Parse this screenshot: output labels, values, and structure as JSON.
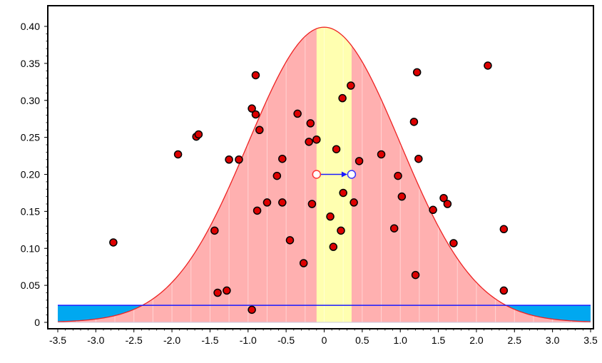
{
  "chart_data": {
    "type": "scatter",
    "title": "",
    "xlabel": "",
    "ylabel": "",
    "xlim": [
      -3.5,
      3.5
    ],
    "ylim": [
      0,
      0.4
    ],
    "grid": false,
    "x_ticks": [
      "-3.5",
      "-3.0",
      "-2.5",
      "-2.0",
      "-1.5",
      "-1.0",
      "-0.5",
      "0",
      "0.5",
      "1.0",
      "1.5",
      "2.0",
      "2.5",
      "3.0",
      "3.5"
    ],
    "y_ticks": [
      "0",
      "0.05",
      "0.10",
      "0.15",
      "0.20",
      "0.25",
      "0.30",
      "0.35",
      "0.40"
    ],
    "distribution": {
      "type": "standard-normal-pdf",
      "mean": 0,
      "sd": 1,
      "fill_color": "#ffb0b0",
      "line_color": "#ee2222"
    },
    "highlight_band": {
      "x_from": -0.1,
      "x_to": 0.36,
      "color": "#ffffb0"
    },
    "threshold_line": {
      "y": 0.023,
      "line_color": "#1a1aff",
      "fill_color": "#00a8f0"
    },
    "drag_indicator": {
      "from": {
        "x": -0.1,
        "y": 0.2
      },
      "to": {
        "x": 0.36,
        "y": 0.2
      },
      "color": "#1a1aff"
    },
    "points_color": "#dd0000",
    "points": [
      {
        "x": -2.77,
        "y": 0.108
      },
      {
        "x": -1.92,
        "y": 0.227
      },
      {
        "x": -1.68,
        "y": 0.251
      },
      {
        "x": -1.65,
        "y": 0.254
      },
      {
        "x": -1.44,
        "y": 0.124
      },
      {
        "x": -1.4,
        "y": 0.04
      },
      {
        "x": -1.28,
        "y": 0.043
      },
      {
        "x": -1.25,
        "y": 0.22
      },
      {
        "x": -1.12,
        "y": 0.22
      },
      {
        "x": -0.95,
        "y": 0.289
      },
      {
        "x": -0.95,
        "y": 0.017
      },
      {
        "x": -0.9,
        "y": 0.334
      },
      {
        "x": -0.9,
        "y": 0.281
      },
      {
        "x": -0.88,
        "y": 0.151
      },
      {
        "x": -0.85,
        "y": 0.26
      },
      {
        "x": -0.75,
        "y": 0.162
      },
      {
        "x": -0.62,
        "y": 0.198
      },
      {
        "x": -0.55,
        "y": 0.221
      },
      {
        "x": -0.55,
        "y": 0.162
      },
      {
        "x": -0.45,
        "y": 0.111
      },
      {
        "x": -0.35,
        "y": 0.282
      },
      {
        "x": -0.27,
        "y": 0.08
      },
      {
        "x": -0.2,
        "y": 0.244
      },
      {
        "x": -0.18,
        "y": 0.269
      },
      {
        "x": -0.16,
        "y": 0.16
      },
      {
        "x": -0.1,
        "y": 0.247
      },
      {
        "x": 0.08,
        "y": 0.143
      },
      {
        "x": 0.12,
        "y": 0.102
      },
      {
        "x": 0.16,
        "y": 0.234
      },
      {
        "x": 0.22,
        "y": 0.124
      },
      {
        "x": 0.24,
        "y": 0.303
      },
      {
        "x": 0.25,
        "y": 0.175
      },
      {
        "x": 0.35,
        "y": 0.32
      },
      {
        "x": 0.39,
        "y": 0.162
      },
      {
        "x": 0.46,
        "y": 0.218
      },
      {
        "x": 0.75,
        "y": 0.227
      },
      {
        "x": 0.92,
        "y": 0.127
      },
      {
        "x": 0.97,
        "y": 0.198
      },
      {
        "x": 1.02,
        "y": 0.17
      },
      {
        "x": 1.18,
        "y": 0.271
      },
      {
        "x": 1.2,
        "y": 0.064
      },
      {
        "x": 1.22,
        "y": 0.338
      },
      {
        "x": 1.24,
        "y": 0.221
      },
      {
        "x": 1.43,
        "y": 0.152
      },
      {
        "x": 1.57,
        "y": 0.168
      },
      {
        "x": 1.62,
        "y": 0.16
      },
      {
        "x": 1.7,
        "y": 0.107
      },
      {
        "x": 2.15,
        "y": 0.347
      },
      {
        "x": 2.36,
        "y": 0.126
      },
      {
        "x": 2.36,
        "y": 0.043
      }
    ]
  }
}
